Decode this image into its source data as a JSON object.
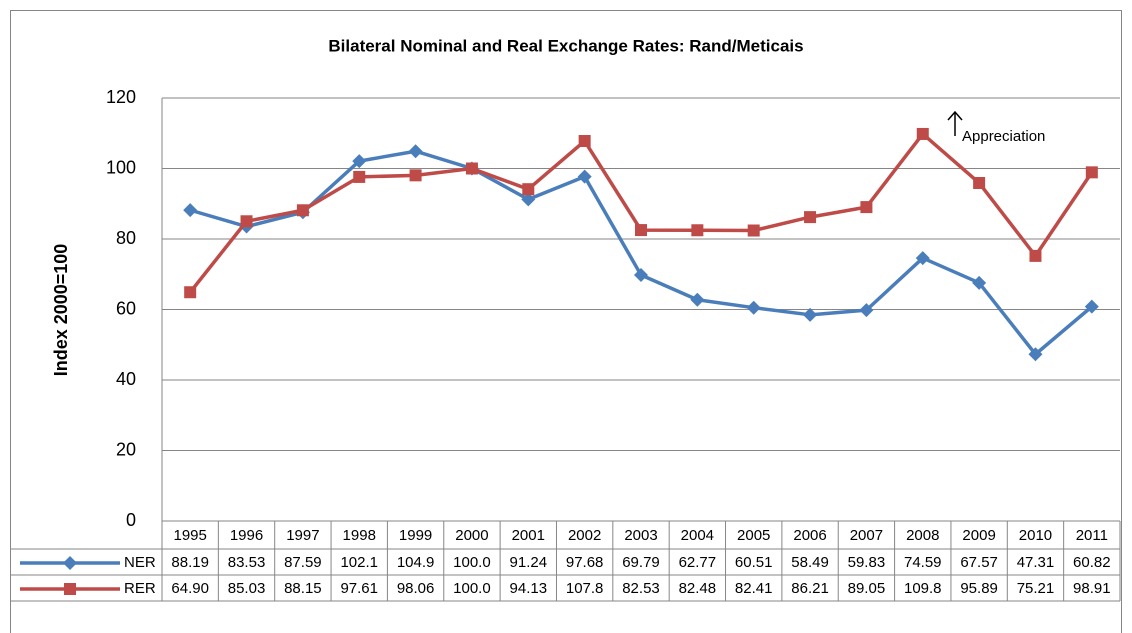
{
  "chart_data": {
    "type": "line",
    "title": "Bilateral Nominal and Real Exchange Rates: Rand/Meticais",
    "y_label": "Index 2000=100",
    "annotation": "Appreciation",
    "categories": [
      "1995",
      "1996",
      "1997",
      "1998",
      "1999",
      "2000",
      "2001",
      "2002",
      "2003",
      "2004",
      "2005",
      "2006",
      "2007",
      "2008",
      "2009",
      "2010",
      "2011"
    ],
    "series": [
      {
        "name": "NER",
        "color": "#4a7ebb",
        "marker": "diamond",
        "values": [
          88.19,
          83.53,
          87.59,
          102.1,
          104.9,
          100.0,
          91.24,
          97.68,
          69.79,
          62.77,
          60.51,
          58.49,
          59.83,
          74.59,
          67.57,
          47.31,
          60.82
        ],
        "value_labels": [
          "88.19",
          "83.53",
          "87.59",
          "102.1",
          "104.9",
          "100.0",
          "91.24",
          "97.68",
          "69.79",
          "62.77",
          "60.51",
          "58.49",
          "59.83",
          "74.59",
          "67.57",
          "47.31",
          "60.82"
        ]
      },
      {
        "name": "RER",
        "color": "#be4b48",
        "marker": "square",
        "values": [
          64.9,
          85.03,
          88.15,
          97.61,
          98.06,
          100.0,
          94.13,
          107.8,
          82.53,
          82.48,
          82.41,
          86.21,
          89.05,
          109.8,
          95.89,
          75.21,
          98.91
        ],
        "value_labels": [
          "64.90",
          "85.03",
          "88.15",
          "97.61",
          "98.06",
          "100.0",
          "94.13",
          "107.8",
          "82.53",
          "82.48",
          "82.41",
          "86.21",
          "89.05",
          "109.8",
          "95.89",
          "75.21",
          "98.91"
        ]
      }
    ],
    "ylim": [
      0,
      120
    ],
    "yticks": [
      0,
      20,
      40,
      60,
      80,
      100,
      120
    ],
    "grid": true,
    "data_table": true
  }
}
